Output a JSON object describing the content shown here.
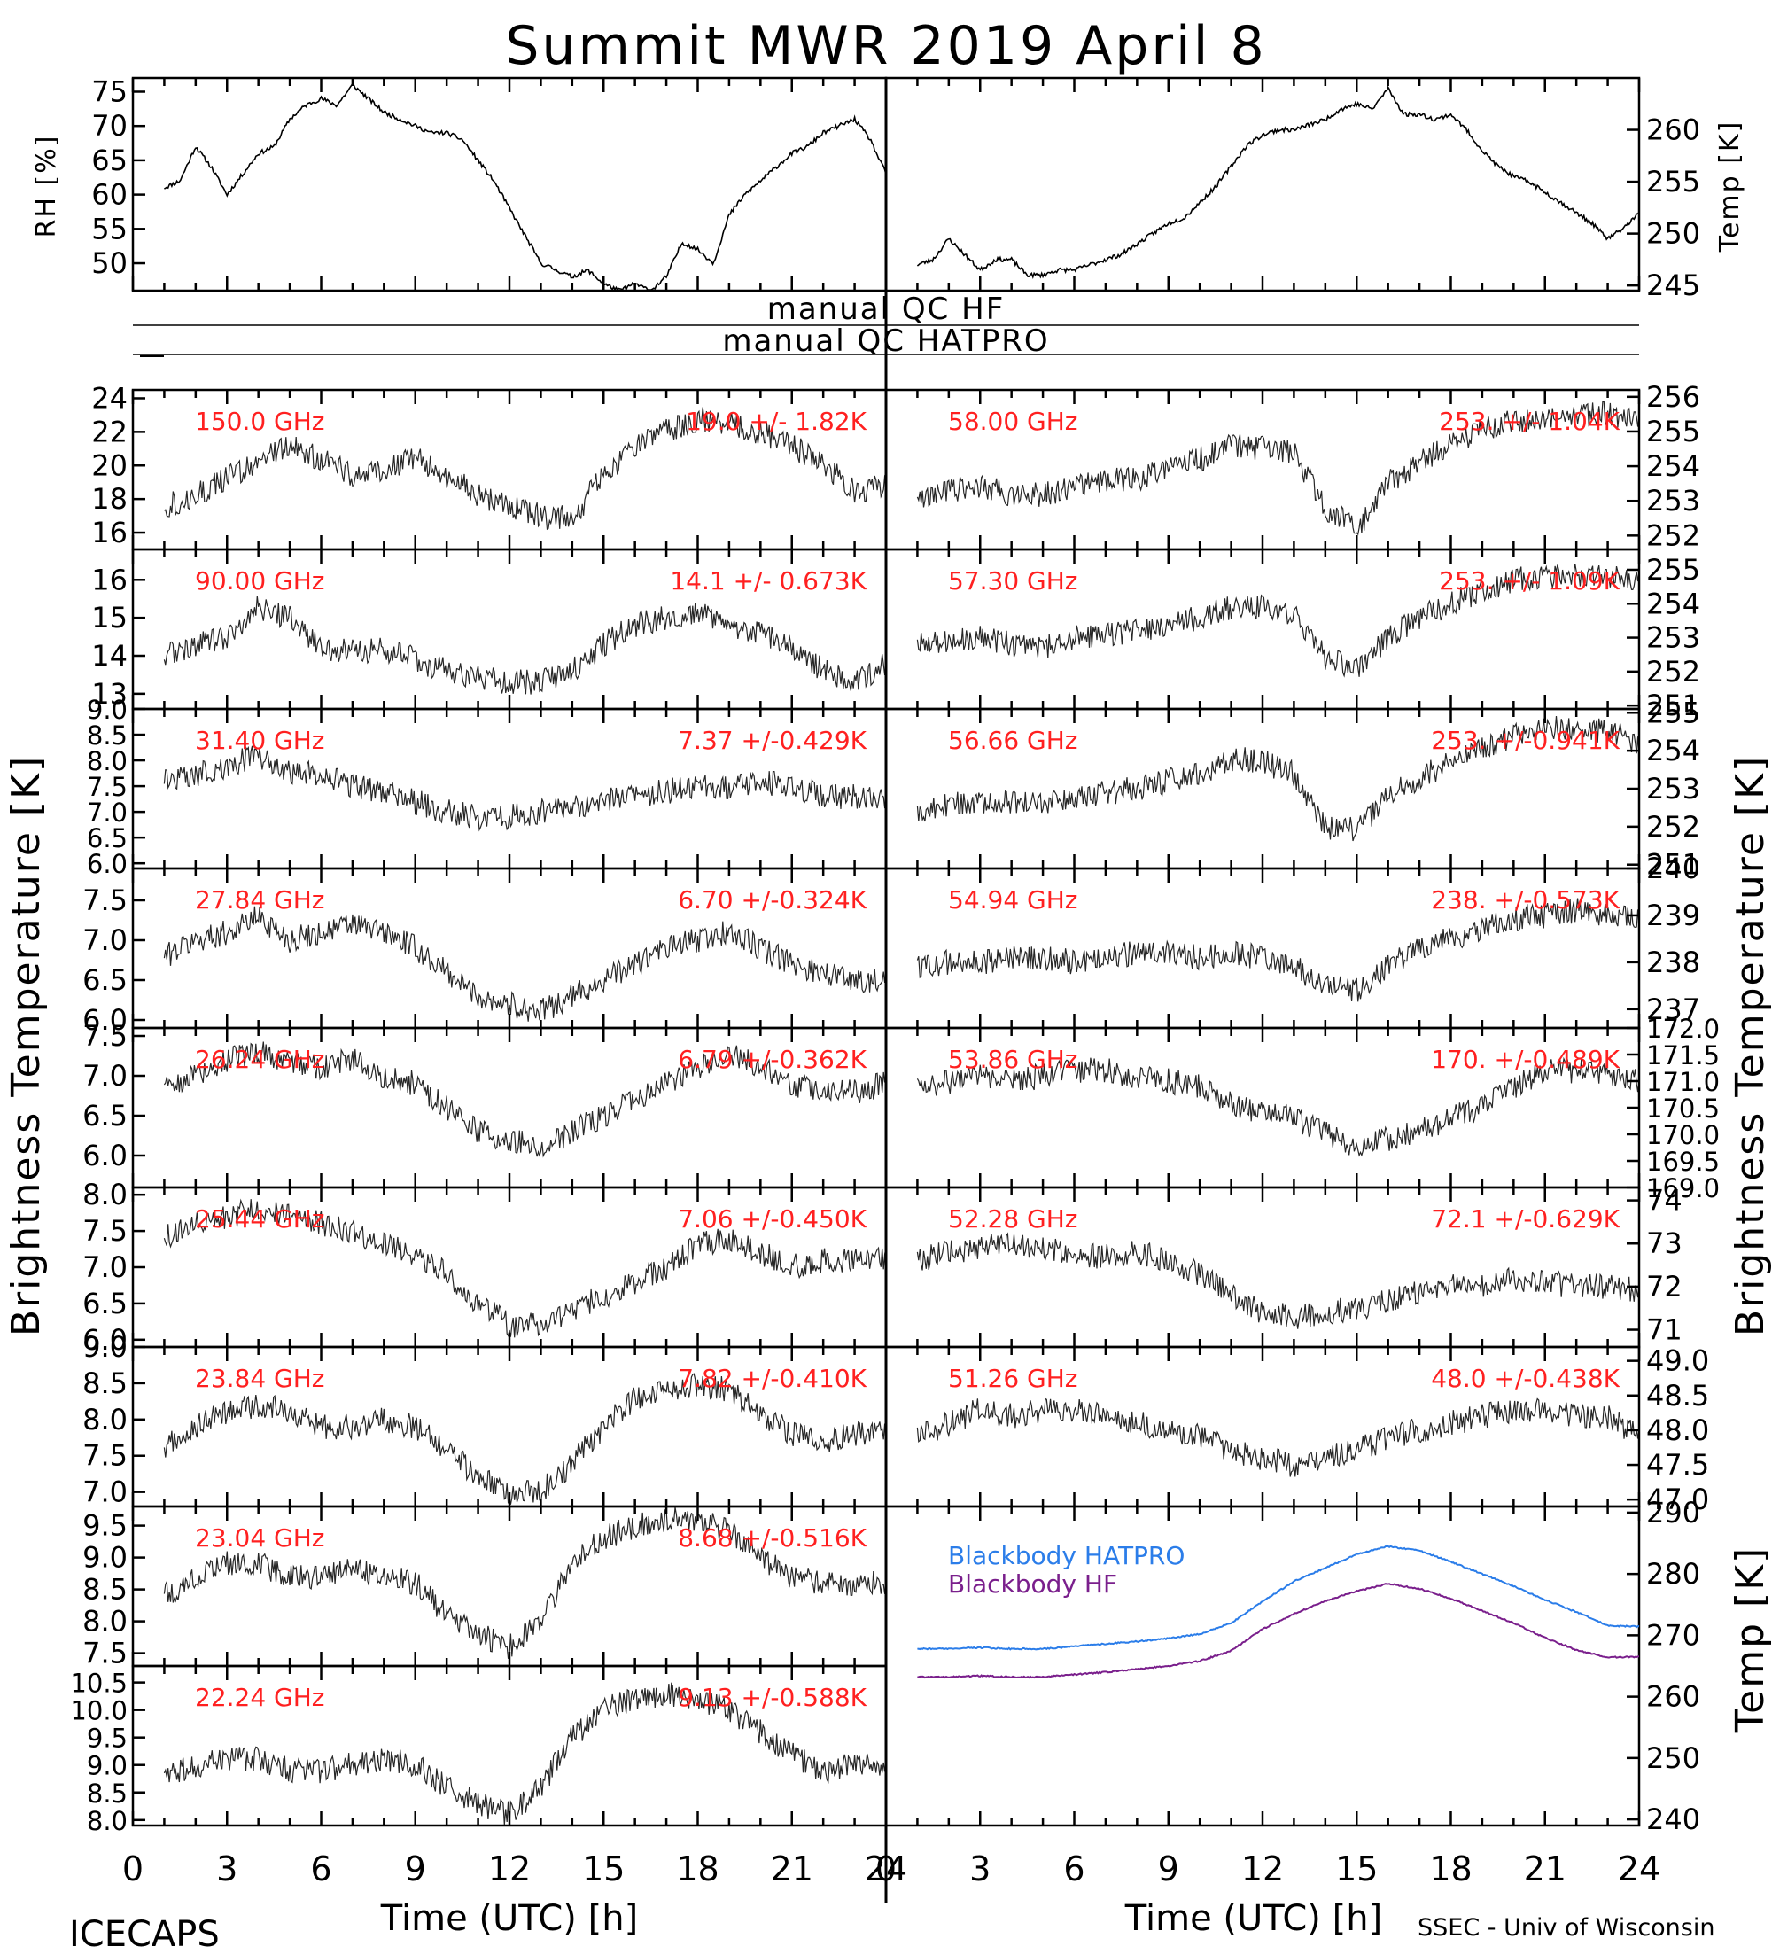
{
  "title": "Summit MWR 2019 April  8",
  "footer": {
    "left": "ICECAPS",
    "right": "SSEC - Univ of Wisconsin",
    "x_title": "Time (UTC) [h]"
  },
  "qc": {
    "hf_label": "manual QC HF",
    "hatpro_label": "manual QC HATPRO"
  },
  "side_titles": {
    "left": "Brightness Temperature [K]",
    "right": "Brightness Temperature [K]",
    "bb_right": "Temp [K]"
  },
  "x_ticks": [
    "0",
    "3",
    "6",
    "9",
    "12",
    "15",
    "18",
    "21",
    "24"
  ],
  "colors": {
    "series": "#000000",
    "annotation": "#ff2020",
    "blackbody_hatpro": "#2b7de9",
    "blackbody_hf": "#7a1f8c"
  },
  "chart_data": [
    {
      "type": "line",
      "id": "rh",
      "ylabel": "RH [%]",
      "ylim": [
        46,
        77
      ],
      "yticks": [
        "50",
        "55",
        "60",
        "65",
        "70",
        "75"
      ],
      "x": [
        1,
        1.5,
        2,
        2.5,
        3,
        3.5,
        4,
        4.5,
        5,
        5.5,
        6,
        6.5,
        7,
        7.5,
        8,
        8.5,
        9,
        9.5,
        10,
        10.5,
        11,
        11.5,
        12,
        12.5,
        13,
        13.5,
        14,
        14.5,
        15,
        15.5,
        16,
        16.5,
        17,
        17.5,
        18,
        18.5,
        19,
        19.5,
        20,
        20.5,
        21,
        21.5,
        22,
        22.5,
        23,
        23.5,
        24
      ],
      "values": [
        61,
        62,
        67,
        64,
        60,
        63,
        66,
        67,
        71,
        73,
        74,
        73,
        76,
        74,
        72,
        71,
        70,
        69,
        69,
        68,
        65,
        62,
        58,
        54,
        50,
        49,
        48,
        49,
        47,
        46,
        47,
        46,
        48,
        53,
        52,
        50,
        57,
        60,
        62,
        64,
        66,
        67,
        69,
        70,
        71,
        68,
        63
      ]
    },
    {
      "type": "line",
      "id": "temp",
      "ylabel": "Temp [K]",
      "ylim": [
        244.5,
        265
      ],
      "yticks": [
        "245",
        "250",
        "255",
        "260"
      ],
      "x": [
        1,
        1.5,
        2,
        2.5,
        3,
        3.5,
        4,
        4.5,
        5,
        5.5,
        6,
        6.5,
        7,
        7.5,
        8,
        8.5,
        9,
        9.5,
        10,
        10.5,
        11,
        11.5,
        12,
        12.5,
        13,
        13.5,
        14,
        14.5,
        15,
        15.5,
        16,
        16.5,
        17,
        17.5,
        18,
        18.5,
        19,
        19.5,
        20,
        20.5,
        21,
        21.5,
        22,
        22.5,
        23,
        23.5,
        24
      ],
      "values": [
        247,
        247.5,
        249.5,
        248,
        246.5,
        247.5,
        247.5,
        246,
        246,
        246.5,
        246.5,
        247,
        247.5,
        248,
        249,
        250,
        251,
        251.5,
        253,
        254.5,
        256.5,
        258.5,
        259.5,
        260,
        260,
        260.5,
        261,
        262,
        262.5,
        262,
        264,
        261.5,
        261.5,
        261,
        261.5,
        260,
        258,
        256.5,
        255.5,
        255,
        254,
        253,
        252,
        251,
        249.5,
        250.5,
        252
      ]
    },
    {
      "type": "line",
      "id": "ch150",
      "frequency": "150.0 GHz",
      "stats": "19.0 +/- 1.82K",
      "ylim": [
        15,
        24.5
      ],
      "yticks": [
        "16",
        "18",
        "20",
        "22",
        "24"
      ],
      "values": [
        18,
        17.6,
        18.2,
        19.2,
        20.3,
        21.2,
        20.3,
        19.5,
        19.8,
        20.4,
        19.4,
        18.3,
        17.6,
        17,
        16.8,
        19.5,
        21,
        22,
        22.8,
        22.4,
        22,
        21.2,
        20,
        18.5,
        18.8
      ]
    },
    {
      "type": "line",
      "id": "ch90",
      "frequency": "90.00 GHz",
      "stats": "14.1 +/- 0.673K",
      "ylim": [
        12.6,
        16.8
      ],
      "yticks": [
        "13",
        "14",
        "15",
        "16"
      ],
      "values": [
        13.9,
        14,
        14.3,
        14.5,
        15.3,
        15,
        14.2,
        14.1,
        14.2,
        13.9,
        13.6,
        13.4,
        13.3,
        13.3,
        13.6,
        14.3,
        14.8,
        15,
        15.1,
        14.8,
        14.6,
        14.2,
        13.6,
        13.3,
        13.8
      ]
    },
    {
      "type": "line",
      "id": "ch31",
      "frequency": "31.40 GHz",
      "stats": "7.37 +/-0.429K",
      "ylim": [
        5.9,
        9.0
      ],
      "yticks": [
        "6.0",
        "6.5",
        "7.0",
        "7.5",
        "8.0",
        "8.5",
        "9.0"
      ],
      "values": [
        7.4,
        7.6,
        7.7,
        7.9,
        8.1,
        7.8,
        7.7,
        7.5,
        7.4,
        7.2,
        7.0,
        6.9,
        6.9,
        7.0,
        7.1,
        7.2,
        7.3,
        7.4,
        7.5,
        7.5,
        7.6,
        7.5,
        7.3,
        7.3,
        7.2
      ]
    },
    {
      "type": "line",
      "id": "ch27",
      "frequency": "27.84 GHz",
      "stats": "6.70 +/-0.324K",
      "ylim": [
        5.9,
        7.9
      ],
      "yticks": [
        "6.0",
        "6.5",
        "7.0",
        "7.5"
      ],
      "values": [
        6.6,
        6.8,
        7.0,
        7.1,
        7.3,
        7.0,
        7.1,
        7.2,
        7.1,
        6.9,
        6.6,
        6.3,
        6.2,
        6.1,
        6.3,
        6.5,
        6.7,
        6.9,
        7.0,
        7.1,
        6.9,
        6.7,
        6.6,
        6.5,
        6.5
      ]
    },
    {
      "type": "line",
      "id": "ch26",
      "frequency": "26.24 GHz",
      "stats": "6.79 +/-0.362K",
      "ylim": [
        5.6,
        7.6
      ],
      "yticks": [
        "6.0",
        "6.5",
        "7.0",
        "7.5"
      ],
      "values": [
        6.8,
        6.9,
        7.0,
        7.2,
        7.3,
        7.2,
        7.1,
        7.2,
        7.0,
        6.9,
        6.6,
        6.3,
        6.2,
        6.1,
        6.3,
        6.5,
        6.7,
        6.9,
        7.1,
        7.3,
        7.1,
        6.9,
        6.8,
        6.8,
        6.9
      ]
    },
    {
      "type": "line",
      "id": "ch25",
      "frequency": "25.44 GHz",
      "stats": "7.06 +/-0.450K",
      "ylim": [
        5.9,
        8.1
      ],
      "yticks": [
        "6.0",
        "6.5",
        "7.0",
        "7.5",
        "8.0"
      ],
      "values": [
        7.2,
        7.4,
        7.6,
        7.7,
        7.8,
        7.7,
        7.6,
        7.5,
        7.3,
        7.2,
        6.9,
        6.5,
        6.2,
        6.2,
        6.4,
        6.6,
        6.8,
        7.0,
        7.3,
        7.4,
        7.2,
        7.0,
        7.1,
        7.1,
        7.1
      ]
    },
    {
      "type": "line",
      "id": "ch23_84",
      "frequency": "23.84 GHz",
      "stats": "7.82 +/-0.410K",
      "ylim": [
        6.8,
        9.0
      ],
      "yticks": [
        "7.0",
        "7.5",
        "8.0",
        "8.5",
        "9.0"
      ],
      "values": [
        7.6,
        7.6,
        7.9,
        8.1,
        8.2,
        8.1,
        7.9,
        7.9,
        8.0,
        7.9,
        7.6,
        7.2,
        7.0,
        7.0,
        7.4,
        7.9,
        8.3,
        8.4,
        8.5,
        8.4,
        8.1,
        7.8,
        7.7,
        7.8,
        7.8
      ]
    },
    {
      "type": "line",
      "id": "ch23_04",
      "frequency": "23.04 GHz",
      "stats": "8.68 +/-0.516K",
      "ylim": [
        7.3,
        9.8
      ],
      "yticks": [
        "7.5",
        "8.0",
        "8.5",
        "9.0",
        "9.5"
      ],
      "values": [
        8.3,
        8.4,
        8.7,
        8.9,
        8.9,
        8.7,
        8.7,
        8.8,
        8.7,
        8.6,
        8.1,
        7.8,
        7.6,
        8.0,
        8.9,
        9.3,
        9.5,
        9.6,
        9.6,
        9.4,
        9.0,
        8.7,
        8.6,
        8.6,
        8.6
      ]
    },
    {
      "type": "line",
      "id": "ch22",
      "frequency": "22.24 GHz",
      "stats": "9.13 +/-0.588K",
      "ylim": [
        7.9,
        10.8
      ],
      "yticks": [
        "8.0",
        "8.5",
        "9.0",
        "9.5",
        "10.0",
        "10.5"
      ],
      "values": [
        8.6,
        8.8,
        9.0,
        9.1,
        9.1,
        8.9,
        8.9,
        9.0,
        9.1,
        9.0,
        8.6,
        8.3,
        8.1,
        8.6,
        9.5,
        10.0,
        10.2,
        10.3,
        10.2,
        10.0,
        9.6,
        9.2,
        8.9,
        9.0,
        9.0
      ]
    },
    {
      "type": "line",
      "id": "ch58",
      "frequency": "58.00 GHz",
      "stats": "253. +/- 1.04K",
      "ylim": [
        251.6,
        256.2
      ],
      "yticks": [
        "252",
        "253",
        "254",
        "255",
        "256"
      ],
      "values": [
        252.8,
        253,
        253.3,
        253.4,
        253.2,
        253.2,
        253.4,
        253.6,
        253.6,
        254,
        254.2,
        254.6,
        254.5,
        254.4,
        252.8,
        252.2,
        253.5,
        254.1,
        254.6,
        255.0,
        255.3,
        255.4,
        255.5,
        255.5,
        255.2
      ]
    },
    {
      "type": "line",
      "id": "ch57",
      "frequency": "57.30 GHz",
      "stats": "253. +/- 1.09K",
      "ylim": [
        250.9,
        255.6
      ],
      "yticks": [
        "251",
        "252",
        "253",
        "254",
        "255"
      ],
      "values": [
        252.6,
        252.8,
        252.9,
        253.0,
        252.8,
        252.7,
        253.0,
        253.1,
        253.2,
        253.4,
        253.6,
        253.9,
        253.9,
        253.7,
        252.4,
        252.1,
        253.0,
        253.6,
        254.0,
        254.4,
        254.7,
        254.8,
        254.9,
        254.8,
        254.6
      ]
    },
    {
      "type": "line",
      "id": "ch56",
      "frequency": "56.66 GHz",
      "stats": "253. +/-0.941K",
      "ylim": [
        250.9,
        255.1
      ],
      "yticks": [
        "251",
        "252",
        "253",
        "254",
        "255"
      ],
      "values": [
        251.8,
        252.4,
        252.6,
        252.7,
        252.6,
        252.6,
        252.8,
        252.9,
        253.0,
        253.2,
        253.4,
        253.8,
        253.7,
        253.4,
        252.0,
        251.9,
        252.8,
        253.3,
        253.7,
        254.1,
        254.4,
        254.6,
        254.6,
        254.5,
        254.2
      ]
    },
    {
      "type": "line",
      "id": "ch54",
      "frequency": "54.94 GHz",
      "stats": "238. +/-0.573K",
      "ylim": [
        236.6,
        240
      ],
      "yticks": [
        "237",
        "238",
        "239",
        "240"
      ],
      "values": [
        237.8,
        237.9,
        238.0,
        238.0,
        238.1,
        238.1,
        238.0,
        238.1,
        238.2,
        238.2,
        238.1,
        238.2,
        238.1,
        237.9,
        237.5,
        237.4,
        237.9,
        238.3,
        238.5,
        238.7,
        238.9,
        239.0,
        239.1,
        239.0,
        238.9
      ]
    },
    {
      "type": "line",
      "id": "ch53",
      "frequency": "53.86 GHz",
      "stats": "170. +/-0.489K",
      "ylim": [
        169.0,
        172.0
      ],
      "yticks": [
        "169.0",
        "169.5",
        "170.0",
        "170.5",
        "171.0",
        "171.5",
        "172.0"
      ],
      "values": [
        171.0,
        170.9,
        171.0,
        171.1,
        171.0,
        171.1,
        171.2,
        171.2,
        171.1,
        171.0,
        170.9,
        170.6,
        170.4,
        170.3,
        170.0,
        169.8,
        169.9,
        170.1,
        170.3,
        170.5,
        170.9,
        171.2,
        171.2,
        171.1,
        171.0
      ]
    },
    {
      "type": "line",
      "id": "ch52",
      "frequency": "52.28 GHz",
      "stats": "72.1 +/-0.629K",
      "ylim": [
        70.6,
        74.3
      ],
      "yticks": [
        "71",
        "72",
        "73",
        "74"
      ],
      "values": [
        72.6,
        72.6,
        72.8,
        72.9,
        73.0,
        72.9,
        72.7,
        72.7,
        72.8,
        72.6,
        72.3,
        71.8,
        71.4,
        71.3,
        71.4,
        71.5,
        71.7,
        71.9,
        72.1,
        72.0,
        72.2,
        72.1,
        72.0,
        72.0,
        71.9
      ]
    },
    {
      "type": "line",
      "id": "ch51",
      "frequency": "51.26 GHz",
      "stats": "48.0 +/-0.438K",
      "ylim": [
        46.9,
        49.2
      ],
      "yticks": [
        "47.0",
        "47.5",
        "48.0",
        "48.5",
        "49.0"
      ],
      "values": [
        47.6,
        47.9,
        48.1,
        48.3,
        48.2,
        48.3,
        48.3,
        48.2,
        48.1,
        48.0,
        47.9,
        47.7,
        47.6,
        47.5,
        47.6,
        47.7,
        47.9,
        48.0,
        48.1,
        48.2,
        48.3,
        48.3,
        48.2,
        48.2,
        47.9
      ]
    },
    {
      "type": "line",
      "id": "blackbody",
      "ylabel": "Temp [K]",
      "ylim": [
        239,
        291
      ],
      "yticks": [
        "240",
        "250",
        "260",
        "270",
        "280",
        "290"
      ],
      "x": [
        1,
        2,
        3,
        4,
        5,
        6,
        7,
        8,
        9,
        10,
        11,
        12,
        13,
        14,
        15,
        16,
        17,
        18,
        19,
        20,
        21,
        22,
        23,
        24
      ],
      "series": [
        {
          "name": "Blackbody HATPRO",
          "values": [
            267.8,
            267.8,
            268.0,
            267.8,
            267.8,
            268.2,
            268.6,
            269.0,
            269.5,
            270.2,
            272.0,
            275.5,
            278.8,
            281.0,
            283.2,
            284.5,
            283.8,
            282.0,
            280.0,
            278.0,
            275.8,
            273.8,
            271.6,
            271.4
          ]
        },
        {
          "name": "Blackbody HF",
          "values": [
            263.2,
            263.2,
            263.4,
            263.2,
            263.2,
            263.6,
            264.0,
            264.5,
            265.0,
            265.8,
            267.5,
            271.0,
            273.5,
            275.6,
            277.2,
            278.4,
            277.6,
            276.0,
            274.0,
            272.0,
            269.6,
            267.6,
            266.4,
            266.5
          ]
        }
      ]
    }
  ]
}
